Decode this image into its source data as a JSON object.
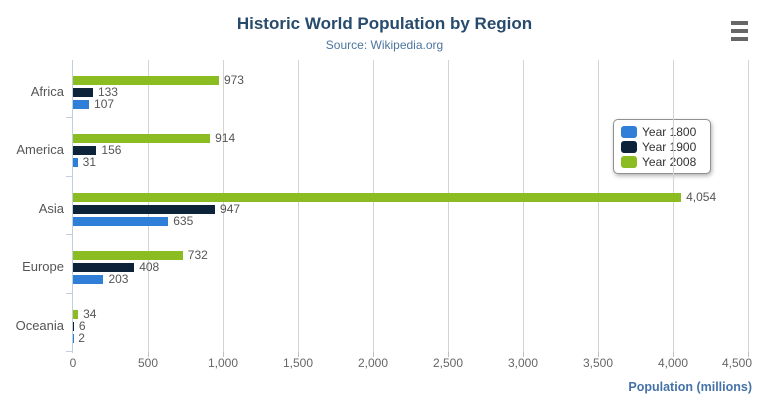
{
  "header": {
    "title": "Historic World Population by Region",
    "subtitle": "Source: Wikipedia.org"
  },
  "context_menu": {
    "icon": "hamburger-menu-icon"
  },
  "chart_data": {
    "type": "bar",
    "orientation": "horizontal",
    "title": "Historic World Population by Region",
    "subtitle": "Source: Wikipedia.org",
    "categories": [
      "Africa",
      "America",
      "Asia",
      "Europe",
      "Oceania"
    ],
    "series": [
      {
        "name": "Year 1800",
        "color": "#2f7ed8",
        "values": [
          107,
          31,
          635,
          203,
          2
        ]
      },
      {
        "name": "Year 1900",
        "color": "#0d233a",
        "values": [
          133,
          156,
          947,
          408,
          6
        ]
      },
      {
        "name": "Year 2008",
        "color": "#8bbc21",
        "values": [
          973,
          914,
          4054,
          732,
          34
        ]
      }
    ],
    "bar_display_order_top_to_bottom": [
      "Year 2008",
      "Year 1900",
      "Year 1800"
    ],
    "xlabel": "Population (millions)",
    "ylabel": "",
    "xlim": [
      0,
      4500
    ],
    "x_ticks": [
      "0",
      "500",
      "1,000",
      "1,500",
      "2,000",
      "2,500",
      "3,000",
      "3,500",
      "4,000",
      "4,500"
    ],
    "grid": true,
    "data_labels_shown": true,
    "legend_position": "right-inside"
  },
  "colors": {
    "title": "#274b6d",
    "subtitle": "#4d759e",
    "axis_title": "#4572a7",
    "gridline": "#d3d3d3",
    "value_tick": "#c0c0c0",
    "category_axis": "#c0d0e0",
    "data_label": "#555555",
    "category_label": "#555555",
    "x_label": "#666666",
    "legend_text": "#333333",
    "legend_border": "#909090",
    "hamburger": "#666666",
    "background": "#ffffff"
  }
}
